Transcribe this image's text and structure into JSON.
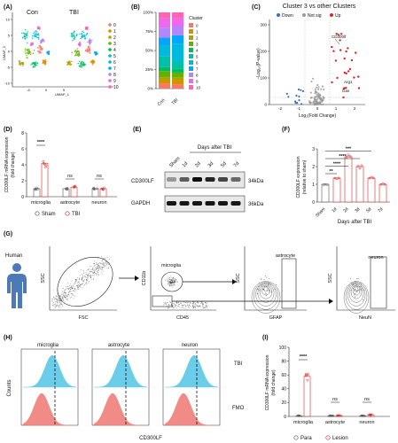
{
  "panels": {
    "A": "(A)",
    "B": "(B)",
    "C": "(C)",
    "D": "(D)",
    "E": "(E)",
    "F": "(F)",
    "G": "(G)",
    "H": "(H)",
    "I": "(I)"
  },
  "panelA": {
    "con": "Con",
    "tbi": "TBI",
    "ylabel": "UMAP_2",
    "xlabel": "UMAP_1",
    "legend": [
      "0",
      "1",
      "2",
      "3",
      "4",
      "5",
      "6",
      "7",
      "8",
      "9",
      "10"
    ],
    "legend_colors": [
      "#f8766d",
      "#db8e00",
      "#aea200",
      "#64b200",
      "#00bd5c",
      "#00c1a7",
      "#00bade",
      "#00a6ff",
      "#b385ff",
      "#ef67eb",
      "#ff63b6"
    ],
    "yticks": [
      "10",
      "5",
      "0",
      "-5",
      "-10"
    ],
    "xticks": [
      "-5",
      "0",
      "5"
    ]
  },
  "panelB": {
    "legend_title": "Cluster",
    "yticks": [
      "100%",
      "75%",
      "50%",
      "25%",
      "0%"
    ],
    "xticks": [
      "Con",
      "TBI"
    ]
  },
  "panelC": {
    "title": "Cluster 3 vs other Clusters",
    "legend": [
      "Down",
      "Not sig",
      "Up"
    ],
    "ylabel": "−Log₁₀(P-value)",
    "xlabel": "Log₂(Fold Change)",
    "yticks": [
      "300",
      "200",
      "100",
      "0"
    ],
    "xticks": [
      "-2",
      "-1",
      "0",
      "1",
      "2"
    ],
    "genes": [
      "CD300lf",
      "Arg1",
      "Gas"
    ]
  },
  "panelD": {
    "ylabel1": "CD300LF mRNA expression",
    "ylabel2": "(fold change)",
    "yticks": [
      "8",
      "6",
      "4",
      "2",
      "0"
    ],
    "categories": [
      "microglia",
      "astrocyte",
      "neuron"
    ],
    "sig": [
      "****",
      "ns",
      "ns"
    ],
    "legend": [
      "Sham",
      "TBI"
    ],
    "chart_data": {
      "type": "bar",
      "categories": [
        "microglia",
        "astrocyte",
        "neuron"
      ],
      "series": [
        {
          "name": "Sham",
          "values": [
            1.0,
            1.0,
            1.0
          ]
        },
        {
          "name": "TBI",
          "values": [
            4.2,
            1.2,
            1.0
          ]
        }
      ],
      "ylim": [
        0,
        8
      ]
    }
  },
  "panelE": {
    "header": "Days after TBI",
    "lanes": [
      "Sham",
      "1d",
      "2d",
      "3d",
      "5d",
      "7d"
    ],
    "rows": [
      "CD300LF",
      "GAPDH"
    ],
    "kda": [
      "34kDa",
      "36kDa"
    ]
  },
  "panelF": {
    "ylabel1": "CD300LF expression",
    "ylabel2": "(relative to sham)",
    "yticks": [
      "3",
      "2",
      "1",
      "0"
    ],
    "xticks": [
      "Sham",
      "1d",
      "2d",
      "3d",
      "5d",
      "7d"
    ],
    "xlabel": "Days after TBI",
    "sig": [
      "**",
      "****",
      "****",
      "***"
    ],
    "chart_data": {
      "type": "bar",
      "categories": [
        "Sham",
        "1d",
        "2d",
        "3d",
        "5d",
        "7d"
      ],
      "values": [
        1.0,
        1.35,
        2.55,
        2.0,
        1.35,
        1.0
      ],
      "ylim": [
        0,
        3
      ]
    }
  },
  "panelG": {
    "human": "Human",
    "plot1": {
      "y": "SSC",
      "x": "FSC"
    },
    "plot2": {
      "y": "CD11b",
      "x": "CD45",
      "gate": "microglia"
    },
    "plot3": {
      "y": "SSC",
      "x": "GFAP",
      "gate": "astrocyte"
    },
    "plot4": {
      "y": "SSC",
      "x": "NeuN",
      "gate": "neuron"
    }
  },
  "panelH": {
    "titles": [
      "microglia",
      "astrocyte",
      "neuron"
    ],
    "rows": [
      "TBI",
      "FMO"
    ],
    "ylabel": "Counts",
    "xlabel": "CD300LF",
    "colors": {
      "tbi": "#5bc8e8",
      "fmo": "#ef7f7b"
    }
  },
  "panelI": {
    "ylabel1": "CD300LF mRNA expression",
    "ylabel2": "(fold change)",
    "yticks": [
      "100",
      "80",
      "60",
      "40",
      "20",
      "0"
    ],
    "categories": [
      "microglia",
      "astrocyte",
      "neuron"
    ],
    "sig": [
      "****",
      "ns",
      "ns"
    ],
    "legend": [
      "Para",
      "Lesion"
    ],
    "chart_data": {
      "type": "bar",
      "categories": [
        "microglia",
        "astrocyte",
        "neuron"
      ],
      "series": [
        {
          "name": "Para",
          "values": [
            1.0,
            1.0,
            1.0
          ]
        },
        {
          "name": "Lesion",
          "values": [
            58,
            1.2,
            2.5
          ]
        }
      ],
      "ylim": [
        0,
        100
      ]
    }
  }
}
